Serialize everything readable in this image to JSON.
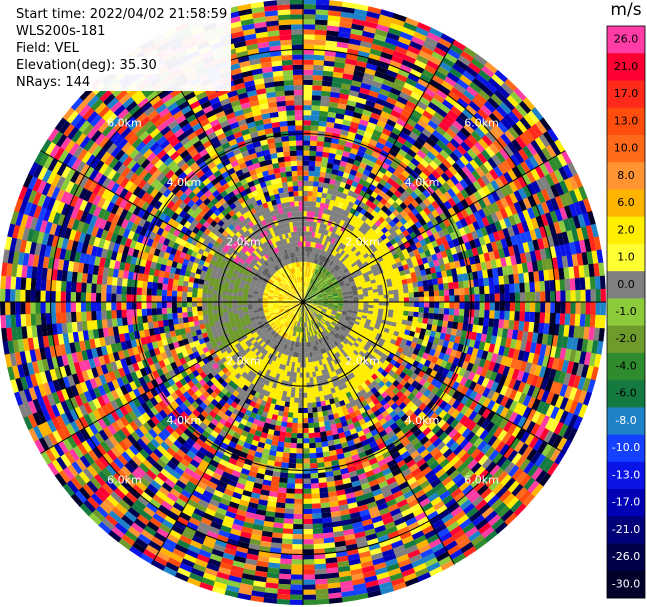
{
  "header": {
    "start_time": "Start time: 2022/04/02 21:58:59",
    "instrument": "WLS200s-181",
    "field": "Field: VEL",
    "elevation": "Elevation(deg): 35.30",
    "nrays": "NRays: 144"
  },
  "colorbar": {
    "unit": "m/s",
    "levels": [
      {
        "label": "26.0",
        "color": "#ff3ba6"
      },
      {
        "label": "21.0",
        "color": "#ff0033"
      },
      {
        "label": "17.0",
        "color": "#ff2a1a"
      },
      {
        "label": "13.0",
        "color": "#ff4d0d"
      },
      {
        "label": "10.0",
        "color": "#ff6a1a"
      },
      {
        "label": "8.0",
        "color": "#ff9430"
      },
      {
        "label": "6.0",
        "color": "#ffb400"
      },
      {
        "label": "2.0",
        "color": "#ffee00"
      },
      {
        "label": "1.0",
        "color": "#ffff33"
      },
      {
        "label": "0.0",
        "color": "#808080"
      },
      {
        "label": "-1.0",
        "color": "#8ccc3c"
      },
      {
        "label": "-2.0",
        "color": "#6f9a2c"
      },
      {
        "label": "-4.0",
        "color": "#2e8b2e"
      },
      {
        "label": "-6.0",
        "color": "#157a40"
      },
      {
        "label": "-8.0",
        "color": "#1e82c8"
      },
      {
        "label": "-10.0",
        "color": "#1440ff"
      },
      {
        "label": "-13.0",
        "color": "#0a14e6"
      },
      {
        "label": "-17.0",
        "color": "#0000b4"
      },
      {
        "label": "-21.0",
        "color": "#000078"
      },
      {
        "label": "-26.0",
        "color": "#00004a"
      },
      {
        "label": "-30.0",
        "color": "#00002a"
      }
    ]
  },
  "chart_data": {
    "type": "heatmap",
    "projection": "polar PPI",
    "field": "VEL",
    "units": "m/s",
    "range_rings_km": [
      2.0,
      4.0,
      6.0
    ],
    "range_ring_labels": [
      "2.0km",
      "4.0km",
      "6.0km"
    ],
    "max_range_km": 7.2,
    "azimuth_spokes_deg": [
      0,
      30,
      60,
      90,
      120,
      150,
      180,
      210,
      240,
      270,
      300,
      330
    ],
    "nrays": 144,
    "description_of_pattern": [
      {
        "range_km": [
          0,
          1.0
        ],
        "dominant": "near-zero to +6 m/s (yellow/orange) north-west half, -2 to -4 m/s (green) south-east half"
      },
      {
        "range_km": [
          1.0,
          2.4
        ],
        "dominant": "grey 0 m/s and green -2..-4 m/s west, yellow +1..+2 m/s east and south"
      },
      {
        "range_km": [
          2.4,
          7.2
        ],
        "dominant": "noise: random values across full colour scale"
      }
    ],
    "colorbar_range": [
      -30.0,
      26.0
    ]
  }
}
